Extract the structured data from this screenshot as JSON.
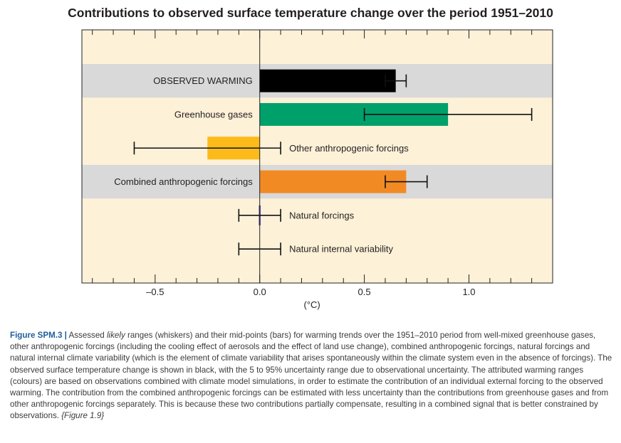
{
  "chart_data": {
    "type": "bar",
    "orientation": "horizontal",
    "title": "Contributions to observed surface temperature change over the period 1951–2010",
    "xlabel": "(°C)",
    "xlim": [
      -0.85,
      1.4
    ],
    "xticks": [
      -0.5,
      0.0,
      0.5,
      1.0
    ],
    "xtick_labels": [
      "–0.5",
      "0.0",
      "0.5",
      "1.0"
    ],
    "grid": false,
    "background": "#fdf1d8",
    "band_color": "#d9d9d9",
    "bars": [
      {
        "label": "OBSERVED WARMING",
        "value": 0.65,
        "low": 0.6,
        "high": 0.7,
        "color": "#000000",
        "label_side": "left",
        "band": true
      },
      {
        "label": "Greenhouse gases",
        "value": 0.9,
        "low": 0.5,
        "high": 1.3,
        "color": "#00a06b",
        "label_side": "left",
        "band": false
      },
      {
        "label": "Other anthropogenic forcings",
        "value": -0.25,
        "low": -0.6,
        "high": 0.1,
        "color": "#fdbb19",
        "label_side": "right",
        "band": false
      },
      {
        "label": "Combined anthropogenic forcings",
        "value": 0.7,
        "low": 0.6,
        "high": 0.8,
        "color": "#f28a24",
        "label_side": "left",
        "band": true
      },
      {
        "label": "Natural forcings",
        "value": 0.0,
        "low": -0.1,
        "high": 0.1,
        "color": "#4b3fa3",
        "label_side": "right",
        "band": false
      },
      {
        "label": "Natural internal variability",
        "value": 0.0,
        "low": -0.1,
        "high": 0.1,
        "color": "#000000",
        "label_side": "right",
        "band": false
      }
    ]
  },
  "caption": {
    "figure_label": "Figure SPM.3 |",
    "pre_italic": " Assessed ",
    "italic": "likely",
    "post_italic": " ranges (whiskers) and their mid-points (bars) for warming trends over the 1951–2010 period from well-mixed greenhouse gases, other anthropogenic forcings (including the cooling effect of aerosols and the effect of land use change), combined anthropogenic forcings, natural forcings and natural internal climate variability (which is the element of climate variability that arises spontaneously within the climate system even in the absence of forcings). The observed surface temperature change is shown in black, with the 5 to 95% uncertainty range due to observational uncertainty. The attributed warming ranges (colours) are based on observations combined with climate model simulations, in order to estimate the contribution of an individual external forcing to the observed warming. The contribution from the combined anthropogenic forcings can be estimated with less uncertainty than the contributions from greenhouse gases and from other anthropogenic forcings separately. This is because these two contributions partially compensate, resulting in a combined signal that is better constrained by observations.",
    "reference": " {Figure 1.9}"
  }
}
